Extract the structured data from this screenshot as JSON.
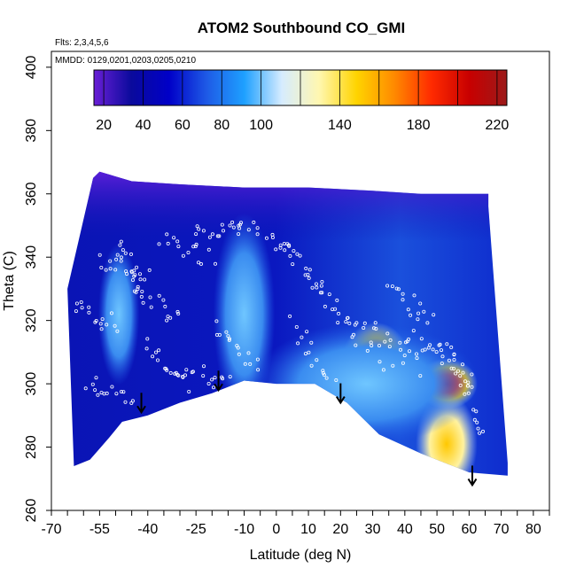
{
  "chart_data": {
    "type": "heatmap",
    "title": "ATOM2 Southbound CO_GMI",
    "flights_note": "Flts: 2,3,4,5,6",
    "dates_note": "MMDD: 0129,0201,0203,0205,0210",
    "xlabel": "Latitude (deg N)",
    "ylabel": "Theta (C)",
    "xlim": [
      -70,
      85
    ],
    "ylim": [
      260,
      405
    ],
    "x_ticks": [
      -70,
      -55,
      -40,
      -25,
      -10,
      0,
      10,
      20,
      30,
      40,
      50,
      60,
      70,
      80
    ],
    "y_ticks": [
      260,
      280,
      300,
      320,
      340,
      360,
      380,
      400
    ],
    "colorbar": {
      "min": 15,
      "max": 225,
      "tick_labels": [
        20,
        40,
        60,
        80,
        100,
        140,
        180,
        220
      ],
      "colors": [
        "#6a1fd6",
        "#0a0a9c",
        "#0000c8",
        "#1e5ae6",
        "#1ea0ff",
        "#d6ecff",
        "#fff7b0",
        "#ffd400",
        "#ff8a00",
        "#ff2a00",
        "#c80000",
        "#9c1a1a"
      ]
    },
    "data_extent": {
      "top_boundary": [
        [
          -57,
          365
        ],
        [
          -55,
          367
        ],
        [
          -45,
          364
        ],
        [
          -30,
          363
        ],
        [
          -10,
          362
        ],
        [
          10,
          362
        ],
        [
          30,
          361
        ],
        [
          45,
          360
        ],
        [
          55,
          360
        ],
        [
          66,
          360
        ],
        [
          66,
          356
        ],
        [
          72,
          275
        ]
      ],
      "bottom_boundary": [
        [
          72,
          271
        ],
        [
          60,
          272
        ],
        [
          45,
          278
        ],
        [
          32,
          284
        ],
        [
          22,
          294
        ],
        [
          12,
          300
        ],
        [
          0,
          300
        ],
        [
          -10,
          301
        ],
        [
          -20,
          297
        ],
        [
          -30,
          294
        ],
        [
          -40,
          290
        ],
        [
          -48,
          288
        ],
        [
          -52,
          283
        ],
        [
          -58,
          276
        ],
        [
          -63,
          274
        ],
        [
          -65,
          330
        ]
      ]
    },
    "features": [
      {
        "kind": "blob",
        "lat": 31,
        "theta": 305,
        "rx": 7,
        "ry": 9,
        "value": 190
      },
      {
        "kind": "blob",
        "lat": 53,
        "theta": 300,
        "rx": 6,
        "ry": 5,
        "value": 180
      },
      {
        "kind": "blob",
        "lat": 53,
        "theta": 281,
        "rx": 6,
        "ry": 10,
        "value": 150
      },
      {
        "kind": "band",
        "lat": -49,
        "theta": 322,
        "rx": 4,
        "ry": 14,
        "value": 80
      },
      {
        "kind": "band",
        "lat": -10,
        "theta": 322,
        "rx": 6,
        "ry": 20,
        "value": 70
      },
      {
        "kind": "band",
        "lat": 28,
        "theta": 300,
        "rx": 22,
        "ry": 12,
        "value": 90
      }
    ],
    "arrows": [
      {
        "lat": -42,
        "theta": 291
      },
      {
        "lat": -18,
        "theta": 298
      },
      {
        "lat": 20,
        "theta": 294
      },
      {
        "lat": 61,
        "theta": 268
      }
    ],
    "grid": false
  }
}
